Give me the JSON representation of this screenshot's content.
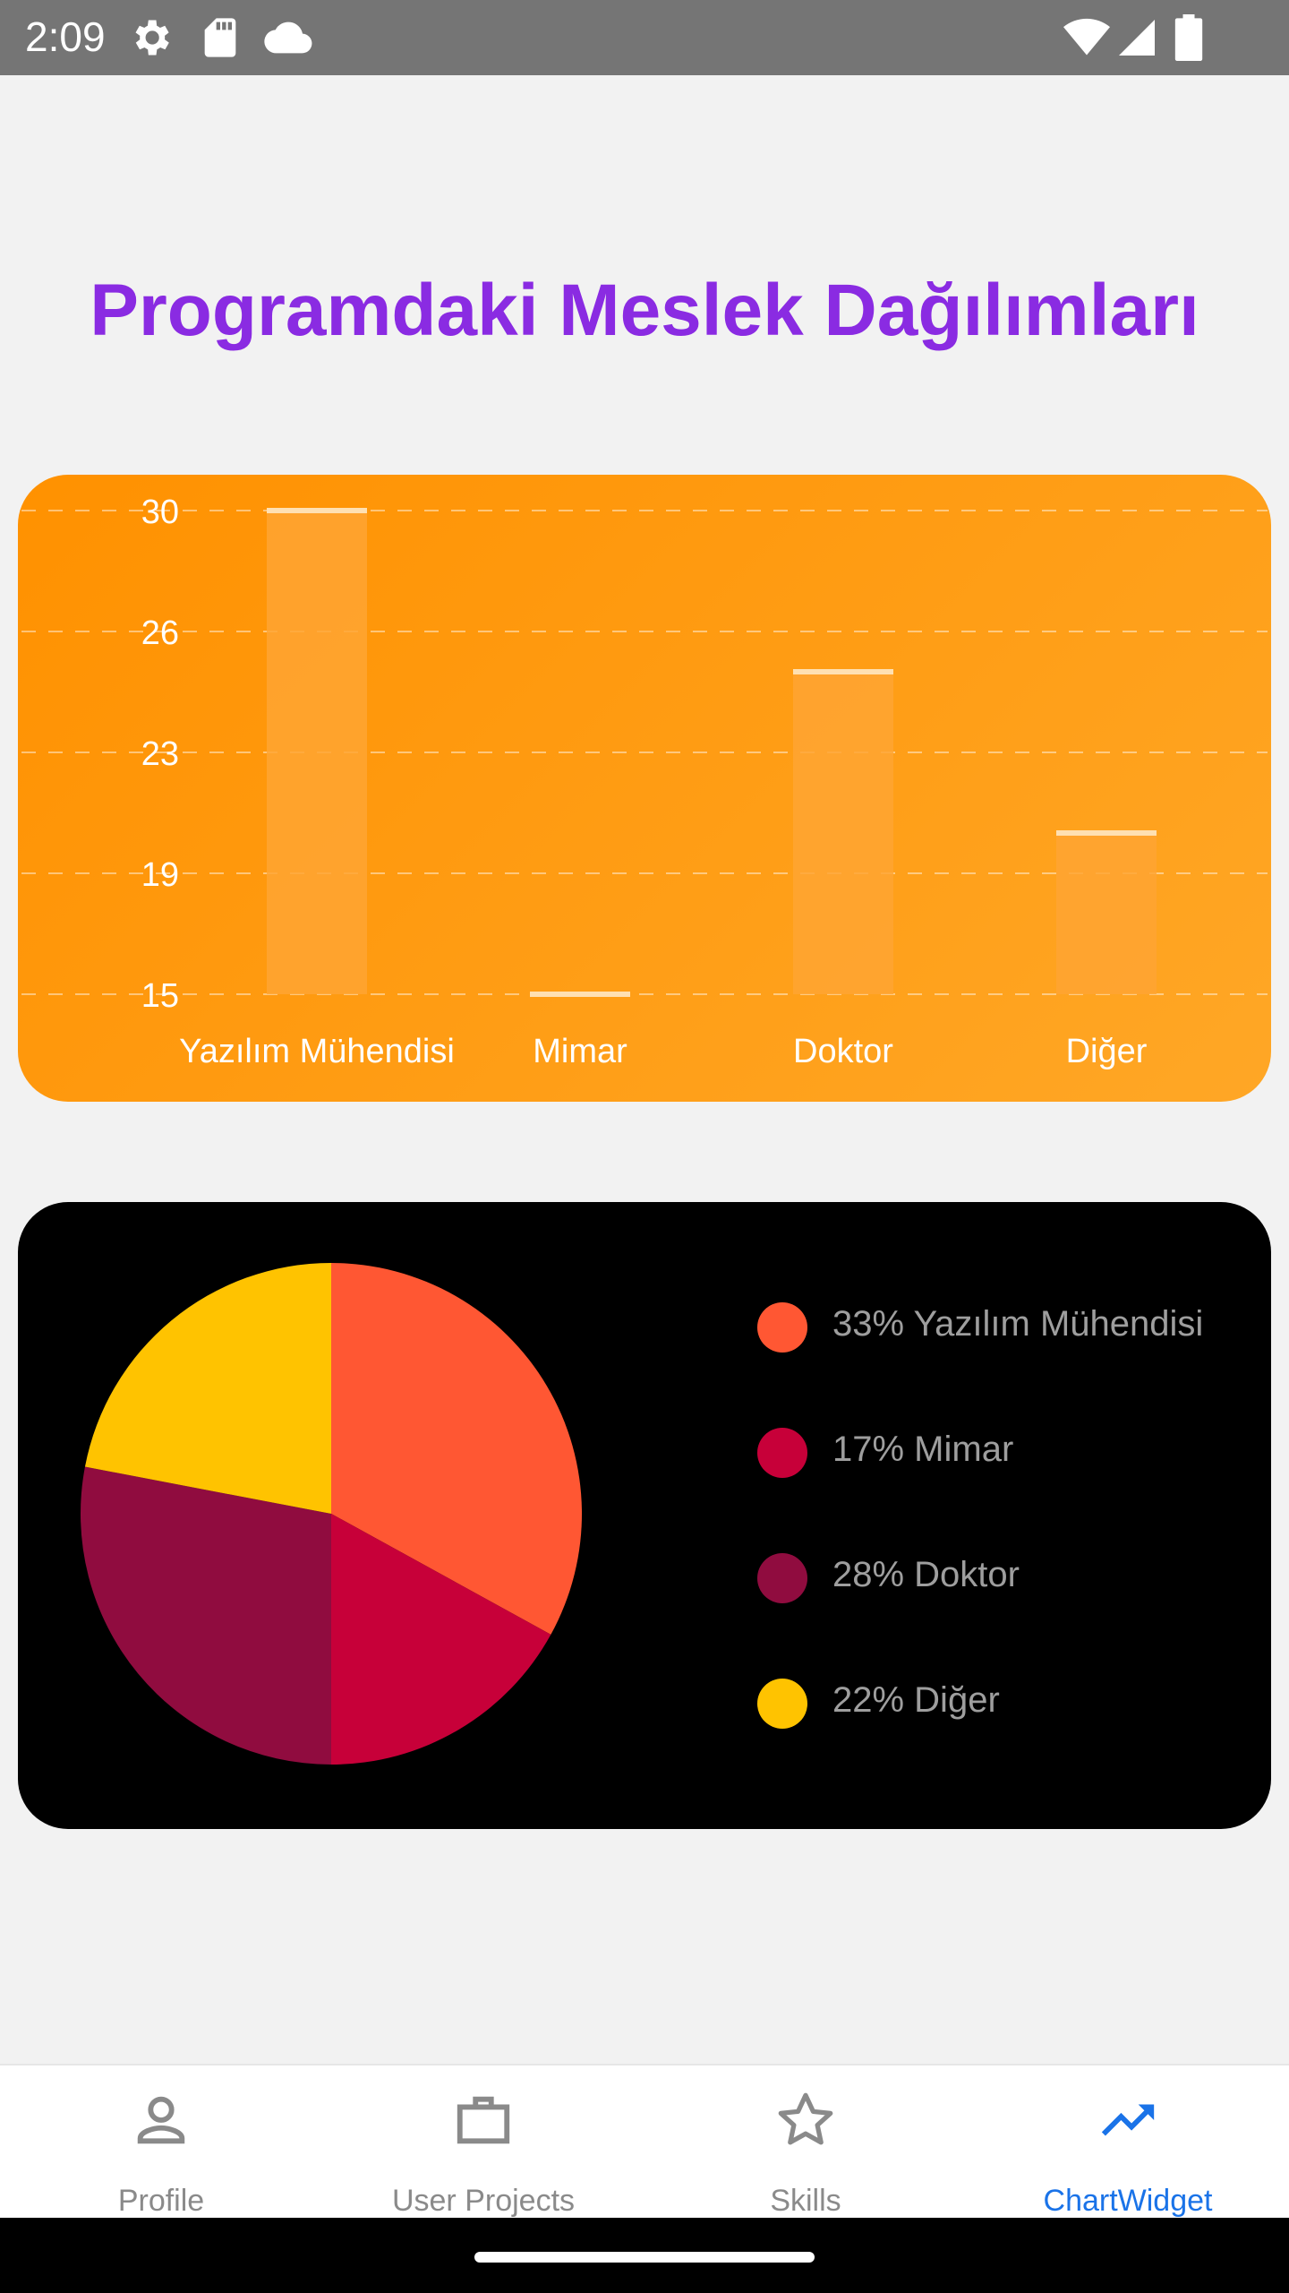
{
  "status_bar": {
    "time": "2:09"
  },
  "title": "Programdaki Meslek Dağılımları",
  "chart_data": [
    {
      "type": "bar",
      "categories": [
        "Yazılım Mühendisi",
        "Mimar",
        "Doktor",
        "Diğer"
      ],
      "values": [
        30,
        15,
        25,
        20
      ],
      "ytick_labels": [
        "30",
        "26",
        "23",
        "19",
        "15"
      ],
      "ylim": [
        15,
        30
      ],
      "grid": true,
      "bar_color": "#ffa533",
      "background": [
        "#ff9100",
        "#ffa726"
      ]
    },
    {
      "type": "pie",
      "slices": [
        {
          "label": "Yazılım Mühendisi",
          "value": 33,
          "legend": "33% Yazılım Mühendisi",
          "color": "#ff5733"
        },
        {
          "label": "Mimar",
          "value": 17,
          "legend": "17% Mimar",
          "color": "#c70039"
        },
        {
          "label": "Doktor",
          "value": 28,
          "legend": "28% Doktor",
          "color": "#900c3f"
        },
        {
          "label": "Diğer",
          "value": 22,
          "legend": "22% Diğer",
          "color": "#ffc300"
        }
      ],
      "legend_position": "right"
    }
  ],
  "bottom_nav": {
    "items": [
      {
        "label": "Profile",
        "icon": "person-icon",
        "active": false
      },
      {
        "label": "User Projects",
        "icon": "briefcase-icon",
        "active": false
      },
      {
        "label": "Skills",
        "icon": "star-icon",
        "active": false
      },
      {
        "label": "ChartWidget",
        "icon": "trending-up-icon",
        "active": true
      }
    ],
    "active_color": "#1a73e8",
    "inactive_color": "#8a8a8a"
  }
}
